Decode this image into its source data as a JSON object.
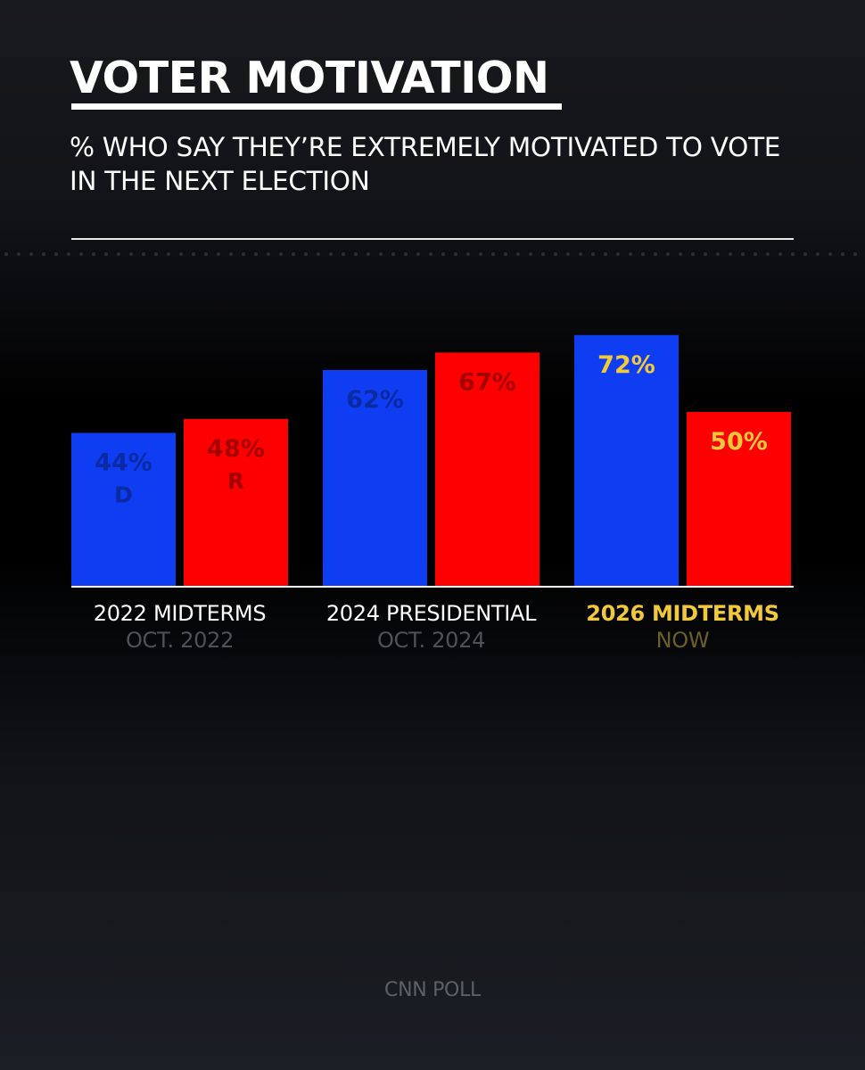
{
  "title": "VOTER MOTIVATION",
  "subtitle": "% WHO SAY THEY’RE EXTREMELY MOTIVATED TO VOTE IN THE NEXT ELECTION",
  "source": "CNN POLL",
  "colors": {
    "democrat_bar": "#0f3ef2",
    "republican_bar": "#ff0000",
    "democrat_label": "#0b2aa3",
    "republican_label": "#a50000",
    "highlight": "#f3c93c"
  },
  "chart_data": {
    "type": "bar",
    "title": "VOTER MOTIVATION",
    "subtitle": "% WHO SAY THEY’RE EXTREMELY MOTIVATED TO VOTE IN THE NEXT ELECTION",
    "categories": [
      "2022 MIDTERMS",
      "2024 PRESIDENTIAL",
      "2026 MIDTERMS"
    ],
    "category_dates": [
      "OCT. 2022",
      "OCT. 2024",
      "NOW"
    ],
    "highlight_category": "2026 MIDTERMS",
    "series": [
      {
        "name": "D",
        "values": [
          44,
          62,
          72
        ],
        "labels": [
          "44%",
          "62%",
          "72%"
        ]
      },
      {
        "name": "R",
        "values": [
          48,
          67,
          50
        ],
        "labels": [
          "48%",
          "67%",
          "50%"
        ]
      }
    ],
    "ylim": [
      0,
      100
    ],
    "grid": false,
    "legend": "inline-first-group"
  }
}
